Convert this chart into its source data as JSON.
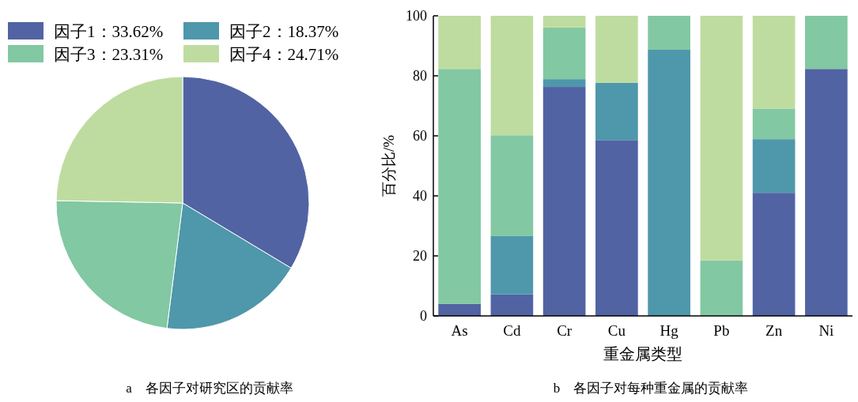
{
  "chart_data": [
    {
      "type": "pie",
      "categories": [
        "因子1：33.62%",
        "因子2：18.37%",
        "因子3：23.31%",
        "因子4：24.71%"
      ],
      "values": [
        33.62,
        18.37,
        23.31,
        24.71
      ],
      "colors": [
        "#5163a3",
        "#4f97ab",
        "#82c8a2",
        "#bfdca0"
      ],
      "legend": "top",
      "annotations": [
        "a　各因子对研究区的贡献率"
      ]
    },
    {
      "type": "bar",
      "stacked": true,
      "categories": [
        "As",
        "Cd",
        "Cr",
        "Cu",
        "Hg",
        "Pb",
        "Zn",
        "Ni"
      ],
      "series": [
        {
          "color": "#5163a3",
          "values": [
            4.0,
            7.2,
            76.3,
            58.6,
            0,
            0,
            41.0,
            82.3
          ]
        },
        {
          "color": "#4f97ab",
          "values": [
            0,
            19.4,
            2.6,
            19.1,
            88.7,
            0,
            17.9,
            0
          ]
        },
        {
          "color": "#82c8a2",
          "values": [
            78.3,
            33.6,
            17.2,
            0,
            11.3,
            18.5,
            10.2,
            17.7
          ]
        },
        {
          "color": "#bfdca0",
          "values": [
            17.7,
            39.8,
            3.9,
            22.3,
            0,
            81.5,
            30.9,
            0
          ]
        }
      ],
      "ylim": [
        0,
        100
      ],
      "yticks": [
        0,
        20,
        40,
        60,
        80,
        100
      ],
      "xlabel": "重金属类型",
      "ylabel": "百分比/%",
      "annotations": [
        "b　各因子对每种重金属的贡献率"
      ]
    }
  ]
}
